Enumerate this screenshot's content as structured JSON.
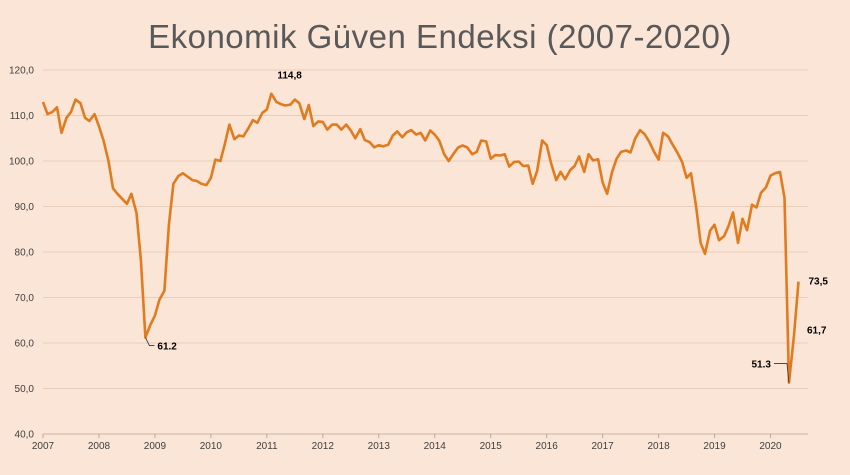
{
  "chart_data": {
    "type": "line",
    "title": "Ekonomik Güven Endeksi (2007-2020)",
    "xlabel": "",
    "ylabel": "",
    "ylim": [
      40,
      120
    ],
    "y_ticks": [
      "120,0",
      "110,0",
      "100,0",
      "90,0",
      "80,0",
      "70,0",
      "60,0",
      "50,0",
      "40,0"
    ],
    "x_ticks": [
      "2007",
      "2008",
      "2009",
      "2010",
      "2011",
      "2012",
      "2013",
      "2014",
      "2015",
      "2016",
      "2017",
      "2018",
      "2019",
      "2020"
    ],
    "grid": "horizontal",
    "line_color": "#e07b1f",
    "series": [
      {
        "values": [
          [
            2007.0,
            113.0
          ],
          [
            2007.08,
            110.3
          ],
          [
            2007.17,
            110.8
          ],
          [
            2007.25,
            111.8
          ],
          [
            2007.33,
            106.2
          ],
          [
            2007.42,
            109.5
          ],
          [
            2007.5,
            110.8
          ],
          [
            2007.58,
            113.5
          ],
          [
            2007.67,
            112.7
          ],
          [
            2007.75,
            109.5
          ],
          [
            2007.83,
            108.8
          ],
          [
            2007.92,
            110.3
          ],
          [
            2008.0,
            107.6
          ],
          [
            2008.08,
            104.6
          ],
          [
            2008.17,
            100.0
          ],
          [
            2008.25,
            94.0
          ],
          [
            2008.33,
            92.8
          ],
          [
            2008.42,
            91.6
          ],
          [
            2008.5,
            90.6
          ],
          [
            2008.58,
            92.8
          ],
          [
            2008.67,
            88.6
          ],
          [
            2008.75,
            78.2
          ],
          [
            2008.83,
            61.2
          ],
          [
            2008.92,
            64.0
          ],
          [
            2009.0,
            66.0
          ],
          [
            2009.08,
            69.5
          ],
          [
            2009.17,
            71.5
          ],
          [
            2009.25,
            86.0
          ],
          [
            2009.33,
            95.0
          ],
          [
            2009.42,
            96.7
          ],
          [
            2009.5,
            97.3
          ],
          [
            2009.58,
            96.6
          ],
          [
            2009.67,
            95.8
          ],
          [
            2009.75,
            95.6
          ],
          [
            2009.83,
            95.0
          ],
          [
            2009.92,
            94.7
          ],
          [
            2010.0,
            96.3
          ],
          [
            2010.08,
            100.3
          ],
          [
            2010.17,
            100.0
          ],
          [
            2010.25,
            103.8
          ],
          [
            2010.33,
            108.0
          ],
          [
            2010.42,
            104.8
          ],
          [
            2010.5,
            105.6
          ],
          [
            2010.58,
            105.4
          ],
          [
            2010.67,
            107.2
          ],
          [
            2010.75,
            109.0
          ],
          [
            2010.83,
            108.4
          ],
          [
            2010.92,
            110.6
          ],
          [
            2011.0,
            111.3
          ],
          [
            2011.08,
            114.8
          ],
          [
            2011.17,
            113.0
          ],
          [
            2011.25,
            112.5
          ],
          [
            2011.33,
            112.2
          ],
          [
            2011.42,
            112.4
          ],
          [
            2011.5,
            113.5
          ],
          [
            2011.58,
            112.7
          ],
          [
            2011.67,
            109.2
          ],
          [
            2011.75,
            112.3
          ],
          [
            2011.83,
            107.7
          ],
          [
            2011.92,
            108.7
          ],
          [
            2012.0,
            108.6
          ],
          [
            2012.08,
            106.9
          ],
          [
            2012.17,
            108.0
          ],
          [
            2012.25,
            108.0
          ],
          [
            2012.33,
            106.9
          ],
          [
            2012.42,
            108.0
          ],
          [
            2012.5,
            106.7
          ],
          [
            2012.58,
            105.0
          ],
          [
            2012.67,
            107.0
          ],
          [
            2012.75,
            104.6
          ],
          [
            2012.83,
            104.2
          ],
          [
            2012.92,
            103.0
          ],
          [
            2013.0,
            103.5
          ],
          [
            2013.08,
            103.2
          ],
          [
            2013.17,
            103.6
          ],
          [
            2013.25,
            105.6
          ],
          [
            2013.33,
            106.5
          ],
          [
            2013.42,
            105.2
          ],
          [
            2013.5,
            106.3
          ],
          [
            2013.58,
            106.8
          ],
          [
            2013.67,
            105.8
          ],
          [
            2013.75,
            106.2
          ],
          [
            2013.83,
            104.5
          ],
          [
            2013.92,
            106.7
          ],
          [
            2014.0,
            105.8
          ],
          [
            2014.08,
            104.5
          ],
          [
            2014.17,
            101.5
          ],
          [
            2014.25,
            100.0
          ],
          [
            2014.33,
            101.5
          ],
          [
            2014.42,
            103.0
          ],
          [
            2014.5,
            103.4
          ],
          [
            2014.58,
            103.0
          ],
          [
            2014.67,
            101.5
          ],
          [
            2014.75,
            102.0
          ],
          [
            2014.83,
            104.5
          ],
          [
            2014.92,
            104.3
          ],
          [
            2015.0,
            100.5
          ],
          [
            2015.08,
            101.3
          ],
          [
            2015.17,
            101.2
          ],
          [
            2015.25,
            101.5
          ],
          [
            2015.33,
            98.8
          ],
          [
            2015.42,
            99.8
          ],
          [
            2015.5,
            99.9
          ],
          [
            2015.58,
            98.9
          ],
          [
            2015.67,
            99.0
          ],
          [
            2015.75,
            95.0
          ],
          [
            2015.83,
            97.8
          ],
          [
            2015.92,
            104.5
          ],
          [
            2016.0,
            103.5
          ],
          [
            2016.08,
            99.5
          ],
          [
            2016.17,
            95.8
          ],
          [
            2016.25,
            97.6
          ],
          [
            2016.33,
            96.0
          ],
          [
            2016.42,
            98.0
          ],
          [
            2016.5,
            98.9
          ],
          [
            2016.58,
            101.0
          ],
          [
            2016.67,
            97.6
          ],
          [
            2016.75,
            101.5
          ],
          [
            2016.83,
            100.1
          ],
          [
            2016.92,
            100.4
          ],
          [
            2017.0,
            95.3
          ],
          [
            2017.08,
            92.8
          ],
          [
            2017.17,
            97.6
          ],
          [
            2017.25,
            100.5
          ],
          [
            2017.33,
            102.0
          ],
          [
            2017.42,
            102.3
          ],
          [
            2017.5,
            101.9
          ],
          [
            2017.58,
            104.9
          ],
          [
            2017.67,
            106.8
          ],
          [
            2017.75,
            105.9
          ],
          [
            2017.83,
            104.3
          ],
          [
            2017.92,
            102.0
          ],
          [
            2018.0,
            100.3
          ],
          [
            2018.08,
            106.2
          ],
          [
            2018.17,
            105.4
          ],
          [
            2018.25,
            103.6
          ],
          [
            2018.33,
            102.0
          ],
          [
            2018.42,
            99.8
          ],
          [
            2018.5,
            96.3
          ],
          [
            2018.58,
            97.3
          ],
          [
            2018.67,
            90.0
          ],
          [
            2018.75,
            82.0
          ],
          [
            2018.83,
            79.6
          ],
          [
            2018.92,
            84.7
          ],
          [
            2019.0,
            86.0
          ],
          [
            2019.08,
            82.6
          ],
          [
            2019.17,
            83.5
          ],
          [
            2019.25,
            85.7
          ],
          [
            2019.33,
            88.7
          ],
          [
            2019.42,
            82.0
          ],
          [
            2019.5,
            87.3
          ],
          [
            2019.58,
            84.8
          ],
          [
            2019.67,
            90.4
          ],
          [
            2019.75,
            89.8
          ],
          [
            2019.83,
            93.0
          ],
          [
            2019.92,
            94.2
          ],
          [
            2020.0,
            96.8
          ],
          [
            2020.08,
            97.3
          ],
          [
            2020.17,
            97.6
          ],
          [
            2020.25,
            91.9
          ],
          [
            2020.33,
            51.3
          ],
          [
            2020.42,
            61.7
          ],
          [
            2020.5,
            73.5
          ]
        ]
      }
    ],
    "annotations": [
      {
        "text": "114,8",
        "x": 2011.08,
        "y": 114.8
      },
      {
        "text": "61.2",
        "x": 2008.83,
        "y": 61.2
      },
      {
        "text": "51.3",
        "x": 2020.33,
        "y": 51.3
      },
      {
        "text": "61,7",
        "x": 2020.42,
        "y": 61.7
      },
      {
        "text": "73,5",
        "x": 2020.5,
        "y": 73.5
      }
    ]
  }
}
